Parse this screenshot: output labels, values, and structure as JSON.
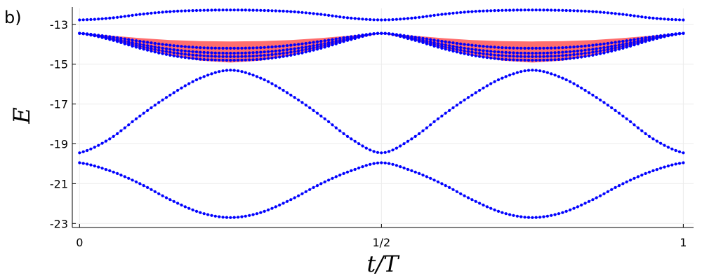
{
  "chart_data": {
    "type": "scatter",
    "panel_label": "b)",
    "xlabel": "t/T",
    "ylabel": "E",
    "xlim": [
      -0.012,
      1.017
    ],
    "ylim": [
      -23.2,
      -12.2
    ],
    "x_ticks": [
      {
        "value": 0,
        "label": "0"
      },
      {
        "value": 0.5,
        "label": "1/2"
      },
      {
        "value": 1,
        "label": "1"
      }
    ],
    "y_ticks": [
      {
        "value": -13,
        "label": "-13"
      },
      {
        "value": -15,
        "label": "-15"
      },
      {
        "value": -17,
        "label": "-17"
      },
      {
        "value": -19,
        "label": "-19"
      },
      {
        "value": -21,
        "label": "-21"
      },
      {
        "value": -23,
        "label": "-23"
      }
    ],
    "grid": true,
    "series_color": "#0000ff",
    "band_color": "#ff6e6e",
    "band": {
      "x": [
        0,
        0.05,
        0.1,
        0.15,
        0.2,
        0.25,
        0.3,
        0.35,
        0.4,
        0.45,
        0.5,
        0.55,
        0.6,
        0.65,
        0.7,
        0.75,
        0.8,
        0.85,
        0.9,
        0.95,
        1
      ],
      "upper": [
        -13.45,
        -13.56,
        -13.69,
        -13.79,
        -13.84,
        -13.86,
        -13.84,
        -13.79,
        -13.69,
        -13.56,
        -13.45,
        -13.56,
        -13.69,
        -13.79,
        -13.84,
        -13.86,
        -13.84,
        -13.79,
        -13.69,
        -13.56,
        -13.45
      ],
      "lower": [
        -13.45,
        -13.75,
        -14.19,
        -14.55,
        -14.82,
        -14.92,
        -14.82,
        -14.55,
        -14.19,
        -13.75,
        -13.45,
        -13.75,
        -14.19,
        -14.55,
        -14.82,
        -14.92,
        -14.82,
        -14.55,
        -14.19,
        -13.75,
        -13.45
      ]
    },
    "x": [
      0,
      0.05,
      0.1,
      0.15,
      0.2,
      0.25,
      0.3,
      0.35,
      0.4,
      0.45,
      0.5,
      0.55,
      0.6,
      0.65,
      0.7,
      0.75,
      0.8,
      0.85,
      0.9,
      0.95,
      1
    ],
    "series": [
      {
        "values": [
          -12.78,
          -12.69,
          -12.5,
          -12.36,
          -12.3,
          -12.28,
          -12.3,
          -12.36,
          -12.5,
          -12.69,
          -12.78,
          -12.69,
          -12.5,
          -12.36,
          -12.3,
          -12.28,
          -12.3,
          -12.36,
          -12.5,
          -12.69,
          -12.78
        ]
      },
      {
        "values": [
          -13.45,
          -13.62,
          -13.85,
          -14.05,
          -14.17,
          -14.2,
          -14.17,
          -14.05,
          -13.85,
          -13.62,
          -13.45,
          -13.62,
          -13.85,
          -14.05,
          -14.17,
          -14.2,
          -14.17,
          -14.05,
          -13.85,
          -13.62,
          -13.45
        ]
      },
      {
        "values": [
          -13.45,
          -13.68,
          -14.0,
          -14.25,
          -14.4,
          -14.45,
          -14.4,
          -14.25,
          -14.0,
          -13.68,
          -13.45,
          -13.68,
          -14.0,
          -14.25,
          -14.4,
          -14.45,
          -14.4,
          -14.25,
          -14.0,
          -13.68,
          -13.45
        ]
      },
      {
        "values": [
          -13.45,
          -13.72,
          -14.1,
          -14.4,
          -14.57,
          -14.62,
          -14.57,
          -14.4,
          -14.1,
          -13.72,
          -13.45,
          -13.72,
          -14.1,
          -14.4,
          -14.57,
          -14.62,
          -14.57,
          -14.4,
          -14.1,
          -13.72,
          -13.45
        ]
      },
      {
        "values": [
          -13.45,
          -13.76,
          -14.2,
          -14.55,
          -14.75,
          -14.8,
          -14.75,
          -14.55,
          -14.2,
          -13.76,
          -13.45,
          -13.76,
          -14.2,
          -14.55,
          -14.75,
          -14.8,
          -14.75,
          -14.55,
          -14.2,
          -13.76,
          -13.45
        ]
      },
      {
        "values": [
          -19.45,
          -18.75,
          -17.6,
          -16.55,
          -15.7,
          -15.3,
          -15.7,
          -16.55,
          -17.6,
          -18.75,
          -19.45,
          -18.75,
          -17.6,
          -16.55,
          -15.7,
          -15.3,
          -15.7,
          -16.55,
          -17.6,
          -18.75,
          -19.45
        ]
      },
      {
        "values": [
          -19.95,
          -20.35,
          -21.0,
          -21.8,
          -22.45,
          -22.7,
          -22.45,
          -21.8,
          -21.0,
          -20.35,
          -19.95,
          -20.35,
          -21.0,
          -21.8,
          -22.45,
          -22.7,
          -22.45,
          -21.8,
          -21.0,
          -20.35,
          -19.95
        ]
      }
    ]
  }
}
